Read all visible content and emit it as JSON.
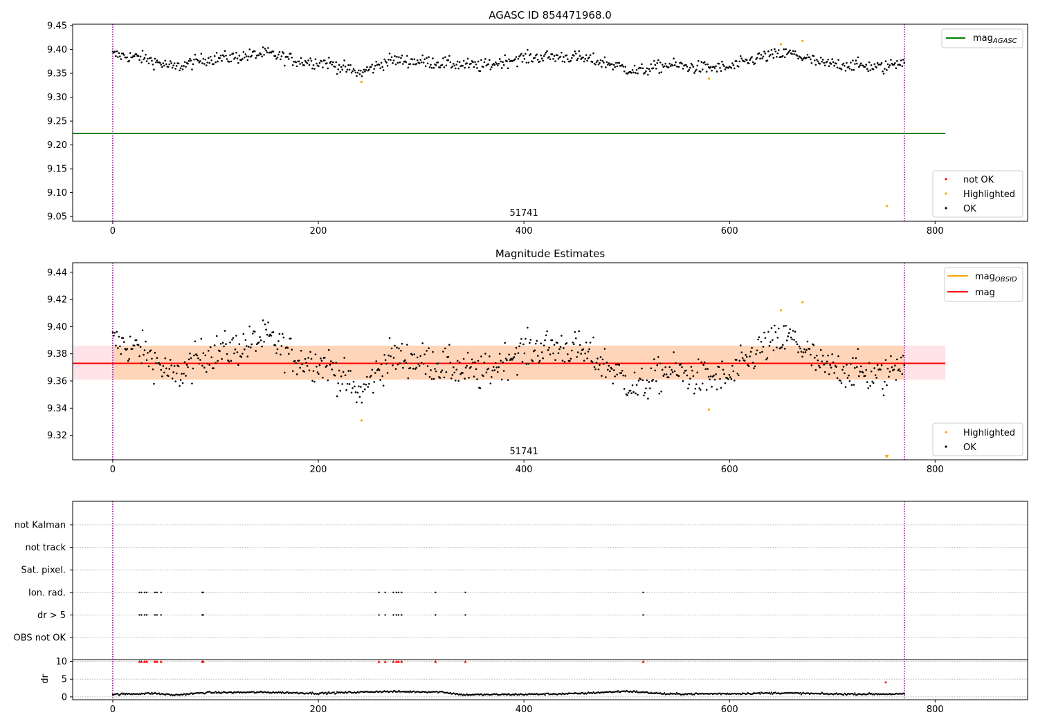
{
  "colors": {
    "ok": "#000000",
    "highlighted": "#ffa500",
    "not_ok": "#ff0000",
    "mag_agasc_line": "#008000",
    "mag_obsid_line": "#ffa500",
    "mag_line": "#ff0000",
    "vline": "#800080",
    "band_outer": "#ffc0cb",
    "band_inner": "#ffcc99"
  },
  "chart_data": [
    {
      "type": "scatter",
      "title": "AGASC ID 854471968.0",
      "xlabel": "",
      "ylabel": "",
      "xlim": [
        -39,
        890
      ],
      "ylim": [
        9.04,
        9.453
      ],
      "x_ticks": [
        0,
        200,
        400,
        600,
        800
      ],
      "x_tick_labels": [
        "0",
        "200",
        "400",
        "600",
        "800"
      ],
      "y_ticks": [
        9.05,
        9.1,
        9.15,
        9.2,
        9.25,
        9.3,
        9.35,
        9.4,
        9.45
      ],
      "y_tick_labels": [
        "9.05",
        "9.10",
        "9.15",
        "9.20",
        "9.25",
        "9.30",
        "9.35",
        "9.40",
        "9.45"
      ],
      "vertical_lines": [
        0,
        770
      ],
      "obsid_label": {
        "x": 400,
        "text": "51741"
      },
      "mag_agasc": 9.224,
      "ok_series": {
        "n": 770,
        "x_range": [
          0,
          770
        ],
        "trend_x": [
          0,
          30,
          60,
          90,
          120,
          150,
          180,
          210,
          240,
          270,
          300,
          330,
          360,
          390,
          420,
          450,
          480,
          510,
          540,
          570,
          600,
          630,
          660,
          690,
          720,
          750,
          770
        ],
        "trend_y": [
          9.389,
          9.382,
          9.362,
          9.38,
          9.384,
          9.392,
          9.376,
          9.372,
          9.35,
          9.378,
          9.375,
          9.37,
          9.365,
          9.38,
          9.385,
          9.384,
          9.372,
          9.354,
          9.368,
          9.362,
          9.362,
          9.384,
          9.392,
          9.37,
          9.368,
          9.362,
          9.378
        ],
        "scatter": 0.012
      },
      "highlighted_points": {
        "x": [
          242,
          580,
          650,
          671,
          753
        ],
        "y": [
          9.332,
          9.339,
          9.411,
          9.418,
          9.072
        ]
      },
      "legend_lines": {
        "placement": "upper right",
        "entries": [
          {
            "label": "mag",
            "sub": "AGASC",
            "color": "#008000"
          }
        ]
      },
      "legend_points": {
        "placement": "lower right",
        "entries": [
          {
            "label": "not OK",
            "color": "#ff0000"
          },
          {
            "label": "Highlighted",
            "color": "#ffa500"
          },
          {
            "label": "OK",
            "color": "#000000"
          }
        ]
      }
    },
    {
      "type": "scatter",
      "title": "Magnitude Estimates",
      "xlabel": "",
      "ylabel": "",
      "xlim": [
        -39,
        890
      ],
      "ylim": [
        9.302,
        9.447
      ],
      "x_ticks": [
        0,
        200,
        400,
        600,
        800
      ],
      "x_tick_labels": [
        "0",
        "200",
        "400",
        "600",
        "800"
      ],
      "y_ticks": [
        9.32,
        9.34,
        9.36,
        9.38,
        9.4,
        9.42,
        9.44
      ],
      "y_tick_labels": [
        "9.32",
        "9.34",
        "9.36",
        "9.38",
        "9.40",
        "9.42",
        "9.44"
      ],
      "vertical_lines": [
        0,
        770
      ],
      "obsid_label": {
        "x": 400,
        "text": "51741"
      },
      "mag": 9.373,
      "mag_obsid": 9.373,
      "mag_band": [
        9.361,
        9.386
      ],
      "mag_band_x": [
        -39,
        810
      ],
      "mag_obsid_band": [
        9.361,
        9.386
      ],
      "mag_obsid_band_x": [
        0,
        770
      ],
      "highlighted_points": {
        "x": [
          242,
          580,
          650,
          671
        ],
        "y": [
          9.331,
          9.339,
          9.412,
          9.418
        ]
      },
      "offscale_marker": {
        "x": 753
      },
      "legend_lines": {
        "placement": "upper right",
        "entries": [
          {
            "label": "mag",
            "sub": "OBSID",
            "color": "#ffa500"
          },
          {
            "label": "mag",
            "sub": "",
            "color": "#ff0000"
          }
        ]
      },
      "legend_points": {
        "placement": "lower right",
        "entries": [
          {
            "label": "Highlighted",
            "color": "#ffa500"
          },
          {
            "label": "OK",
            "color": "#000000"
          }
        ]
      }
    },
    {
      "type": "scatter",
      "title": "",
      "xlim": [
        -39,
        890
      ],
      "x_ticks": [
        0,
        200,
        400,
        600,
        800
      ],
      "x_tick_labels": [
        "0",
        "200",
        "400",
        "600",
        "800"
      ],
      "vertical_lines": [
        0,
        770
      ],
      "flag_rows": [
        "not Kalman",
        "not track",
        "Sat. pixel.",
        "Ion. rad.",
        "dr > 5",
        "OBS not OK"
      ],
      "flagged_x": [
        26,
        28,
        31,
        33,
        41,
        43,
        47,
        87,
        88,
        259,
        265,
        273,
        276,
        278,
        281,
        314,
        343,
        516
      ],
      "flagged_rows": [
        "Ion. rad.",
        "dr > 5"
      ],
      "dr_ylabel": "dr",
      "dr_ylim": [
        -0.8,
        10.5
      ],
      "dr_ticks": [
        0,
        5,
        10
      ],
      "dr_tick_labels": [
        "0",
        "5",
        "10"
      ],
      "dr_trend_x": [
        0,
        40,
        60,
        90,
        150,
        200,
        260,
        320,
        340,
        400,
        450,
        500,
        540,
        600,
        650,
        700,
        770
      ],
      "dr_trend_y": [
        0.7,
        1.0,
        0.5,
        1.2,
        1.3,
        1.0,
        1.5,
        1.4,
        0.6,
        0.7,
        0.9,
        1.6,
        0.8,
        0.9,
        1.1,
        0.8,
        0.8
      ],
      "dr_clipped_marker_y": 10,
      "dr_outlier": {
        "x": 752,
        "y": 4.1
      }
    }
  ]
}
